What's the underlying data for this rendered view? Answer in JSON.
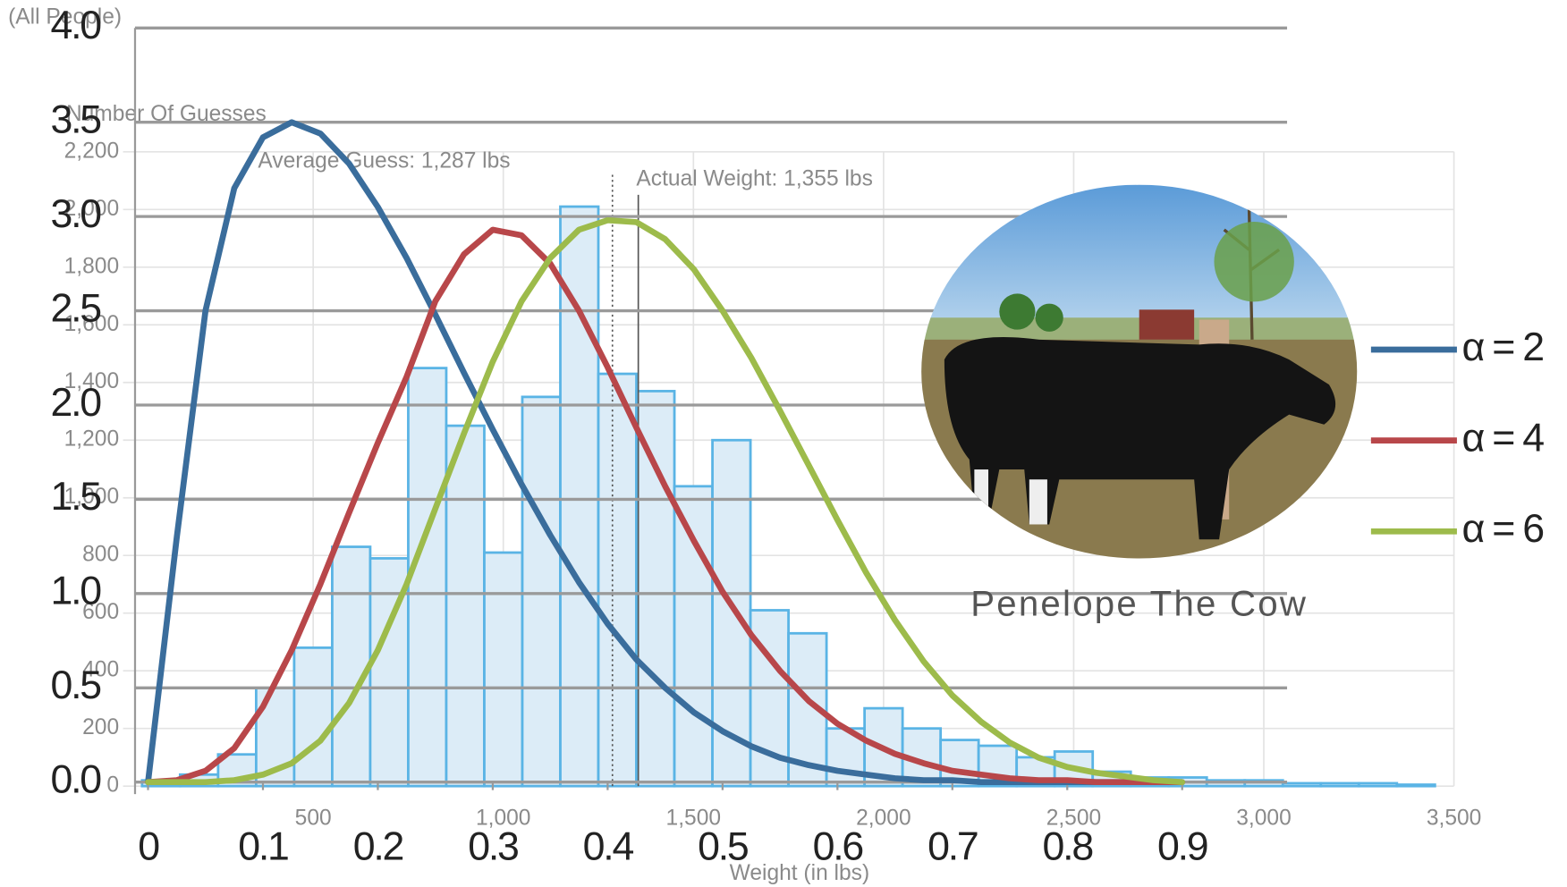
{
  "chart_data": [
    {
      "type": "histogram",
      "title": "(All People)",
      "y_label": "Number Of Guesses",
      "x_label": "Weight (in lbs)",
      "bins": [
        50,
        150,
        250,
        350,
        450,
        550,
        650,
        750,
        850,
        950,
        1050,
        1150,
        1250,
        1350,
        1450,
        1550,
        1650,
        1750,
        1850,
        1950,
        2050,
        2150,
        2250,
        2350,
        2450,
        2550,
        2650,
        2750,
        2850,
        2950,
        3050,
        3150,
        3250,
        3350,
        3450
      ],
      "counts": [
        20,
        40,
        110,
        340,
        480,
        830,
        790,
        1450,
        1250,
        810,
        1350,
        2010,
        1430,
        1370,
        1040,
        1200,
        610,
        530,
        200,
        270,
        200,
        160,
        140,
        100,
        120,
        50,
        30,
        30,
        20,
        20,
        10,
        10,
        10,
        5
      ],
      "color": "#5ab4e5",
      "fill": "#dcecf7",
      "xlim": [
        0,
        3500
      ],
      "xticks": [
        500,
        {
          "value": 1000,
          "label": "1,000"
        },
        {
          "value": 1500,
          "label": "1,500"
        },
        {
          "value": 2000,
          "label": "2,000"
        },
        {
          "value": 2500,
          "label": "2,500"
        },
        {
          "value": 3000,
          "label": "3,000"
        },
        {
          "value": 3500,
          "label": "3,500"
        }
      ],
      "ylim": [
        0,
        2200
      ],
      "yticks": [
        0,
        200,
        400,
        600,
        800,
        {
          "value": 1000,
          "label": "1,000"
        },
        {
          "value": 1200,
          "label": "1,200"
        },
        {
          "value": 1400,
          "label": "1,400"
        },
        {
          "value": 1600,
          "label": "1,600"
        },
        {
          "value": 1800,
          "label": "1,800"
        },
        {
          "value": 2000,
          "label": "2,000"
        },
        {
          "value": 2200,
          "label": "2,200"
        }
      ],
      "grid": true,
      "annotations": [
        {
          "text": "Average Guess: 1,287 lbs",
          "x": 1287
        },
        {
          "text": "Actual Weight: 1,355 lbs",
          "x": 1355
        }
      ]
    },
    {
      "type": "line",
      "x": [
        0,
        0.025,
        0.05,
        0.075,
        0.1,
        0.125,
        0.15,
        0.175,
        0.2,
        0.225,
        0.25,
        0.275,
        0.3,
        0.325,
        0.35,
        0.375,
        0.4,
        0.425,
        0.45,
        0.475,
        0.5,
        0.525,
        0.55,
        0.575,
        0.6,
        0.625,
        0.65,
        0.675,
        0.7,
        0.725,
        0.75,
        0.775,
        0.8,
        0.825,
        0.85,
        0.875,
        0.9
      ],
      "series": [
        {
          "name": "α = 2",
          "color": "#3a6d9c",
          "values": [
            0,
            1.3,
            2.5,
            3.15,
            3.42,
            3.5,
            3.44,
            3.28,
            3.05,
            2.78,
            2.48,
            2.17,
            1.87,
            1.58,
            1.31,
            1.06,
            0.84,
            0.65,
            0.5,
            0.37,
            0.27,
            0.19,
            0.13,
            0.09,
            0.06,
            0.04,
            0.02,
            0.01,
            0.01,
            0,
            0,
            0,
            0,
            0,
            0,
            0,
            0
          ]
        },
        {
          "name": "α = 4",
          "color": "#b8474a",
          "values": [
            0,
            0.01,
            0.06,
            0.18,
            0.4,
            0.7,
            1.05,
            1.43,
            1.8,
            2.15,
            2.55,
            2.8,
            2.93,
            2.9,
            2.75,
            2.5,
            2.2,
            1.88,
            1.57,
            1.28,
            1.01,
            0.78,
            0.59,
            0.43,
            0.31,
            0.22,
            0.15,
            0.1,
            0.06,
            0.04,
            0.02,
            0.01,
            0.01,
            0,
            0,
            0,
            0
          ]
        },
        {
          "name": "α = 6",
          "color": "#9dbb4b",
          "values": [
            0,
            0,
            0,
            0.01,
            0.04,
            0.1,
            0.22,
            0.42,
            0.7,
            1.05,
            1.45,
            1.85,
            2.23,
            2.55,
            2.78,
            2.93,
            2.98,
            2.97,
            2.88,
            2.72,
            2.5,
            2.25,
            1.97,
            1.68,
            1.39,
            1.11,
            0.86,
            0.64,
            0.46,
            0.32,
            0.21,
            0.13,
            0.08,
            0.05,
            0.03,
            0.01,
            0
          ]
        }
      ],
      "xlim": [
        0,
        1
      ],
      "xticks": [
        0,
        0.1,
        0.2,
        0.3,
        0.4,
        0.5,
        0.6,
        0.7,
        0.8,
        0.9
      ],
      "ylim": [
        0,
        4
      ],
      "yticks": [
        {
          "value": 0,
          "label": "0.0"
        },
        0.5,
        {
          "value": 1,
          "label": "1.0"
        },
        1.5,
        {
          "value": 2,
          "label": "2.0"
        },
        2.5,
        {
          "value": 3,
          "label": "3.0"
        },
        3.5,
        {
          "value": 4,
          "label": "4.0"
        }
      ],
      "grid": true,
      "legend": "right"
    }
  ],
  "photo": {
    "caption": "Penelope The Cow"
  }
}
